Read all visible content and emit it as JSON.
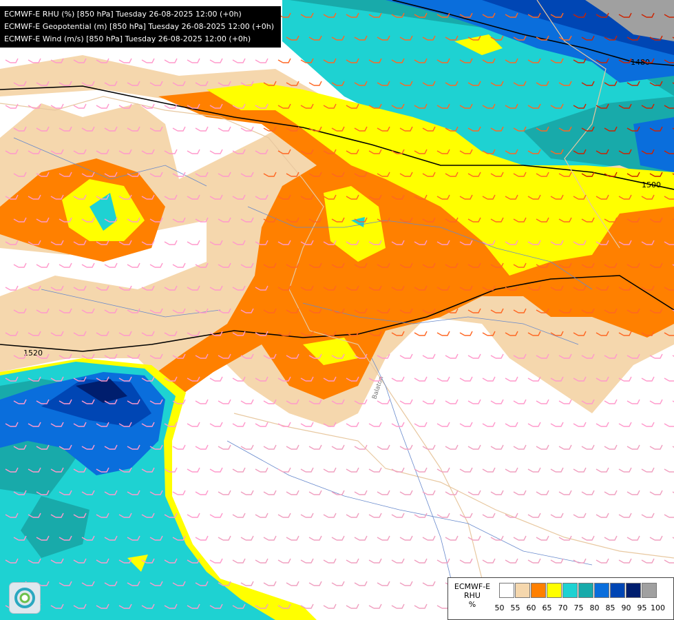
{
  "header": {
    "lines": [
      "ECMWF-E RHU (%) [850 hPa] Tuesday 26-08-2025 12:00 (+0h)",
      "ECMWF-E Geopotential (m) [850 hPa] Tuesday 26-08-2025 12:00 (+0h)",
      "ECMWF-E Wind (m/s) [850 hPa] Tuesday 26-08-2025 12:00 (+0h)"
    ]
  },
  "contours": {
    "labels": [
      "1480",
      "1500",
      "1520"
    ]
  },
  "legend": {
    "model": "ECMWF-E",
    "variable": "RHU",
    "unit": "%",
    "ticks": [
      "50",
      "55",
      "60",
      "65",
      "70",
      "75",
      "80",
      "85",
      "90",
      "95",
      "100"
    ],
    "colors": [
      "#ffffff",
      "#f5d7ad",
      "#ff8000",
      "#ffff00",
      "#1ed2d2",
      "#18aaaa",
      "#0a6edc",
      "#0046b4",
      "#001e6e",
      "#a0a0a0",
      "#646464"
    ]
  },
  "map_labels": {
    "lake": "Balaton",
    "logo": "logo-icon"
  },
  "palette": {
    "low_wind": "#ff99cc",
    "mid_wind": "#ff6622",
    "high_wind": "#cc2200"
  }
}
